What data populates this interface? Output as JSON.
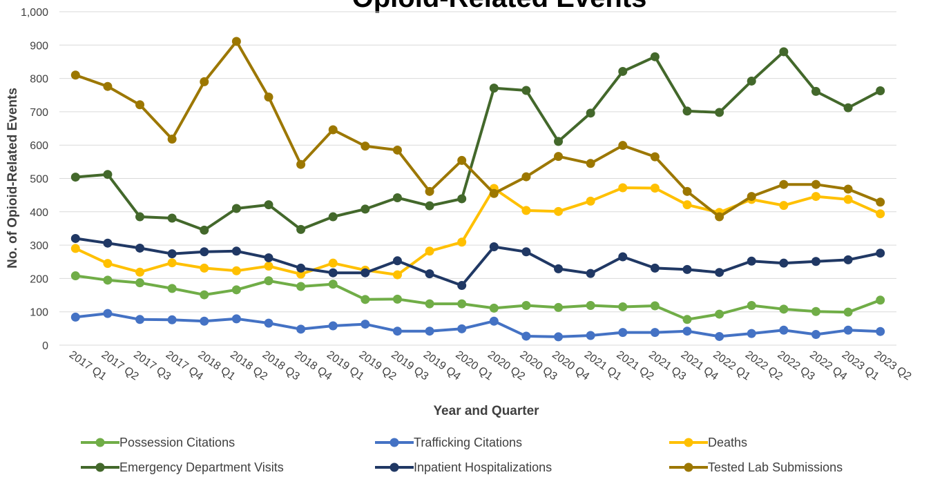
{
  "chart_data": {
    "type": "line",
    "title": "Opioid-Related Events",
    "xlabel": "Year and Quarter",
    "ylabel": "No. of Opioid-Related Events",
    "ylim": [
      0,
      1000
    ],
    "yticks": [
      "0",
      "100",
      "200",
      "300",
      "400",
      "500",
      "600",
      "700",
      "800",
      "900",
      "1,000"
    ],
    "grid": true,
    "legend_position": "bottom",
    "categories": [
      "2017 Q1",
      "2017 Q2",
      "2017 Q3",
      "2017 Q4",
      "2018 Q1",
      "2018 Q2",
      "2018 Q3",
      "2018 Q4",
      "2019 Q1",
      "2019 Q2",
      "2019 Q3",
      "2019 Q4",
      "2020 Q1",
      "2020 Q2",
      "2020 Q3",
      "2020 Q4",
      "2021 Q1",
      "2021 Q2",
      "2021 Q3",
      "2021 Q4",
      "2022 Q1",
      "2022 Q2",
      "2022 Q3",
      "2022 Q4",
      "2023 Q1",
      "2023 Q2"
    ],
    "series": [
      {
        "name": "Possession Citations",
        "color": "#70ad47",
        "values": [
          208,
          195,
          187,
          170,
          151,
          166,
          193,
          176,
          183,
          137,
          138,
          124,
          124,
          111,
          119,
          113,
          119,
          115,
          118,
          77,
          93,
          119,
          108,
          101,
          99,
          135
        ]
      },
      {
        "name": "Trafficking Citations",
        "color": "#4472c4",
        "values": [
          84,
          95,
          77,
          76,
          72,
          79,
          66,
          48,
          58,
          63,
          42,
          42,
          49,
          72,
          27,
          25,
          29,
          38,
          38,
          42,
          26,
          35,
          45,
          32,
          45,
          41
        ]
      },
      {
        "name": "Deaths",
        "color": "#ffc000",
        "values": [
          290,
          245,
          219,
          247,
          231,
          223,
          237,
          213,
          246,
          225,
          211,
          282,
          309,
          470,
          404,
          401,
          432,
          472,
          471,
          421,
          398,
          437,
          419,
          446,
          437,
          394
        ]
      },
      {
        "name": "Emergency Department Visits",
        "color": "#43682b",
        "values": [
          504,
          512,
          385,
          381,
          345,
          410,
          421,
          347,
          385,
          408,
          442,
          418,
          439,
          771,
          764,
          611,
          696,
          821,
          865,
          702,
          698,
          792,
          880,
          761,
          712,
          763
        ]
      },
      {
        "name": "Inpatient Hospitalizations",
        "color": "#203864",
        "values": [
          320,
          306,
          291,
          274,
          280,
          282,
          262,
          231,
          217,
          217,
          253,
          214,
          179,
          295,
          280,
          229,
          215,
          265,
          231,
          227,
          218,
          252,
          246,
          251,
          256,
          276
        ]
      },
      {
        "name": "Tested Lab Submissions",
        "color": "#9c7700",
        "values": [
          810,
          776,
          721,
          618,
          790,
          911,
          744,
          542,
          646,
          597,
          585,
          461,
          554,
          455,
          505,
          566,
          545,
          599,
          565,
          461,
          385,
          446,
          482,
          482,
          468,
          429
        ]
      }
    ]
  }
}
